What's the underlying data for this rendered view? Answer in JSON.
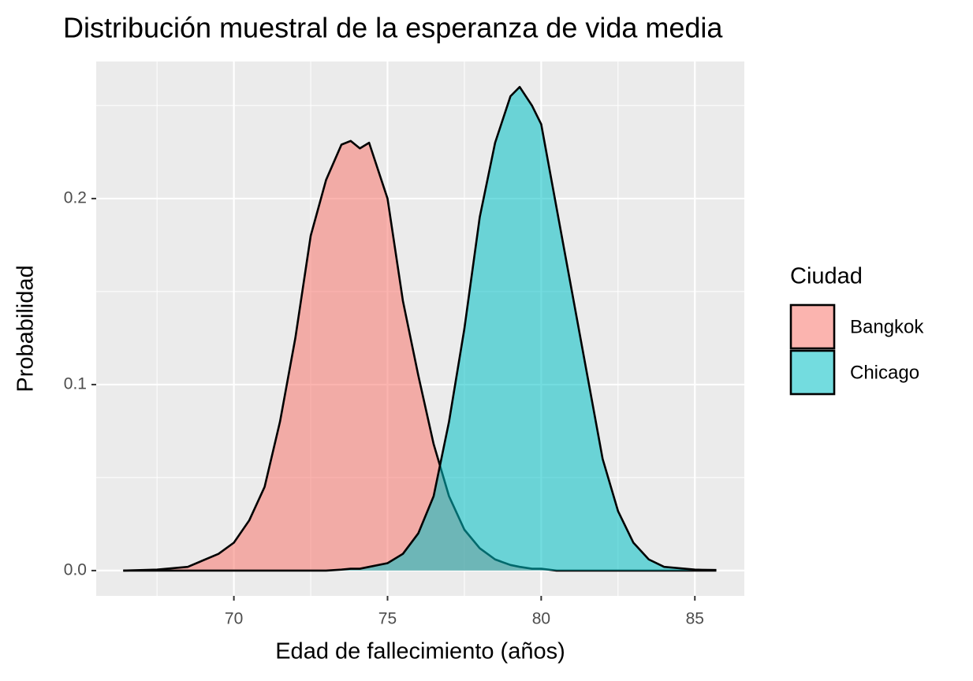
{
  "chart_data": {
    "type": "density",
    "title": "Distribución muestral de la esperanza de vida media",
    "x_label": "Edad de fallecimiento (años)",
    "y_label": "Probabilidad",
    "legend_title": "Ciudad",
    "legend_position": "right",
    "grid": true,
    "minor_grid": true,
    "xlim": [
      65.52,
      86.61
    ],
    "ylim": [
      -0.0136,
      0.2737
    ],
    "xticks": [
      70,
      75,
      80,
      85
    ],
    "yticks": [
      {
        "value": 0,
        "label": "0.0"
      },
      0.1,
      0.2
    ],
    "x": [
      66.4,
      67.5,
      68.5,
      69.5,
      70,
      70.5,
      71,
      71.5,
      72,
      72.5,
      73,
      73.5,
      73.8,
      74.1,
      74.4,
      75,
      75.5,
      76,
      76.5,
      77,
      77.5,
      78,
      78.5,
      79,
      79.3,
      79.7,
      80,
      80.5,
      81,
      81.5,
      82,
      82.5,
      83,
      83.5,
      84,
      85,
      85.7
    ],
    "series": [
      {
        "name": "Bangkok",
        "color": "#F8766D",
        "values": [
          0,
          0.0005,
          0.002,
          0.009,
          0.015,
          0.027,
          0.045,
          0.08,
          0.125,
          0.18,
          0.21,
          0.229,
          0.231,
          0.227,
          0.23,
          0.2,
          0.145,
          0.105,
          0.068,
          0.04,
          0.022,
          0.012,
          0.006,
          0.003,
          0.002,
          0.001,
          0.001,
          0,
          0,
          0,
          0,
          0,
          0,
          0,
          0,
          0,
          0
        ]
      },
      {
        "name": "Chicago",
        "color": "#00BFC4",
        "values": [
          0,
          0,
          0,
          0,
          0,
          0,
          0,
          0,
          0,
          0,
          0,
          0.0005,
          0.001,
          0.001,
          0.002,
          0.004,
          0.009,
          0.02,
          0.04,
          0.08,
          0.13,
          0.19,
          0.23,
          0.255,
          0.26,
          0.25,
          0.24,
          0.195,
          0.15,
          0.105,
          0.06,
          0.032,
          0.015,
          0.006,
          0.002,
          0.0005,
          0.0003
        ]
      }
    ]
  }
}
